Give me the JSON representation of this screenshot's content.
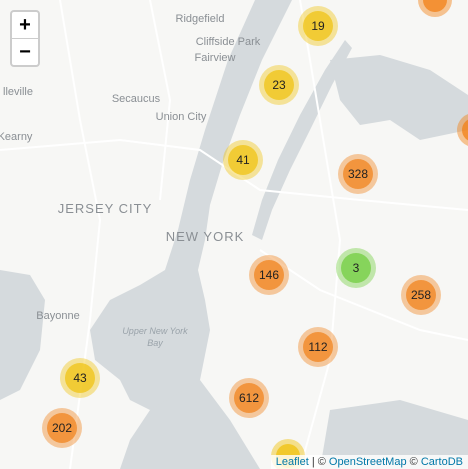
{
  "places": [
    "Ridgefield",
    "Cliffside Park",
    "Fairview",
    "Secaucus",
    "Union City",
    "lleville",
    "Kearny",
    "JERSEY CITY",
    "NEW YORK",
    "Bayonne",
    "Upper New York",
    "Bay"
  ],
  "clusters": [
    {
      "count": 19,
      "color": "#f0c20c"
    },
    {
      "count": 23,
      "color": "#f0c20c"
    },
    {
      "count": 41,
      "color": "#f0c20c"
    },
    {
      "count": 328,
      "color": "#f18017"
    },
    {
      "count": 3,
      "color": "#6ecc39"
    },
    {
      "count": 146,
      "color": "#f18017"
    },
    {
      "count": 258,
      "color": "#f18017"
    },
    {
      "count": 112,
      "color": "#f18017"
    },
    {
      "count": 43,
      "color": "#f0c20c"
    },
    {
      "count": 612,
      "color": "#f18017"
    },
    {
      "count": 202,
      "color": "#f18017"
    }
  ],
  "zoom": {
    "in": "+",
    "out": "−"
  },
  "attribution": [
    "Leaflet",
    "| ©",
    "OpenStreetMap",
    "©",
    "CartoDB"
  ]
}
